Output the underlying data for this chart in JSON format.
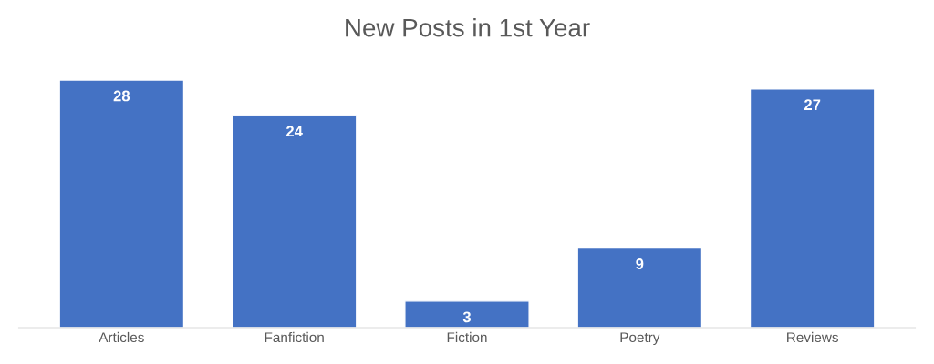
{
  "chart_data": {
    "type": "bar",
    "title": "New Posts in 1st Year",
    "categories": [
      "Articles",
      "Fanfiction",
      "Fiction",
      "Poetry",
      "Reviews"
    ],
    "values": [
      28,
      24,
      3,
      9,
      27
    ],
    "color": "#4472c4",
    "data_labels": true,
    "grid": false,
    "legend": false
  }
}
